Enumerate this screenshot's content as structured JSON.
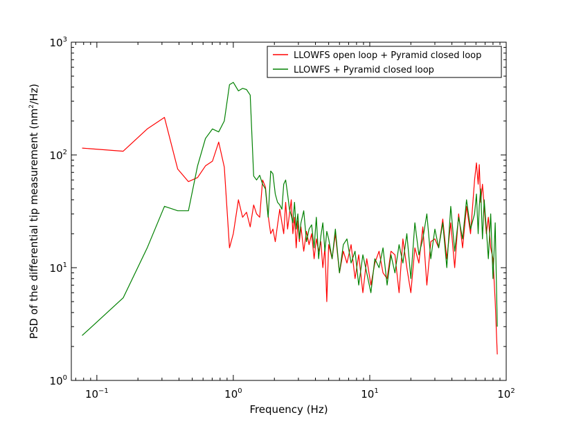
{
  "chart_data": {
    "type": "line",
    "xscale": "log",
    "yscale": "log",
    "xlim": [
      0.065,
      100
    ],
    "ylim": [
      1,
      1000
    ],
    "xlabel": "Frequency (Hz)",
    "ylabel": "PSD of the differential tip measurement (nm²/Hz)",
    "ylabel_parts": {
      "before": "PSD of the differential tip measurement (nm",
      "sup": "2",
      "after": "/Hz)"
    },
    "x_ticks": [
      {
        "value": 0.1,
        "base": "10",
        "exp": "−1"
      },
      {
        "value": 1,
        "base": "10",
        "exp": "0"
      },
      {
        "value": 10,
        "base": "10",
        "exp": "1"
      },
      {
        "value": 100,
        "base": "10",
        "exp": "2"
      }
    ],
    "y_ticks": [
      {
        "value": 1,
        "base": "10",
        "exp": "0"
      },
      {
        "value": 10,
        "base": "10",
        "exp": "1"
      },
      {
        "value": 100,
        "base": "10",
        "exp": "2"
      },
      {
        "value": 1000,
        "base": "10",
        "exp": "3"
      }
    ],
    "legend_position": "top-right",
    "series": [
      {
        "name": "LLOWFS open loop + Pyramid closed loop",
        "color": "#ff0000",
        "x": [
          0.078,
          0.156,
          0.234,
          0.313,
          0.391,
          0.469,
          0.547,
          0.625,
          0.703,
          0.781,
          0.859,
          0.938,
          1.0,
          1.09,
          1.17,
          1.25,
          1.33,
          1.41,
          1.48,
          1.56,
          1.64,
          1.72,
          1.8,
          1.88,
          1.95,
          2.03,
          2.11,
          2.19,
          2.27,
          2.34,
          2.42,
          2.5,
          2.58,
          2.66,
          2.73,
          2.81,
          2.89,
          2.97,
          3.05,
          3.13,
          3.28,
          3.44,
          3.59,
          3.75,
          3.91,
          4.06,
          4.22,
          4.38,
          4.53,
          4.69,
          4.84,
          5.0,
          5.3,
          5.6,
          6.0,
          6.4,
          6.8,
          7.3,
          7.8,
          8.3,
          8.9,
          9.5,
          10.2,
          10.9,
          11.7,
          12.5,
          13.4,
          14.3,
          15.3,
          16.4,
          17.5,
          18.7,
          20.0,
          21.4,
          22.9,
          24.5,
          26.2,
          28.0,
          30.0,
          32.0,
          34.3,
          36.7,
          39.2,
          41.9,
          44.8,
          47.9,
          51.2,
          54.8,
          58.6,
          60.5,
          62.3,
          63.5,
          65.0,
          67.0,
          69.0,
          71.5,
          74.0,
          77.0,
          80.0,
          83.0,
          86.0
        ],
        "y": [
          115,
          108,
          170,
          215,
          75,
          58,
          63,
          80,
          88,
          130,
          78,
          15,
          20,
          40,
          28,
          31,
          23,
          36,
          30,
          28,
          60,
          52,
          29,
          20,
          22,
          17,
          24,
          33,
          25,
          20,
          38,
          22,
          30,
          40,
          20,
          28,
          15,
          26,
          17,
          23,
          14,
          21,
          16,
          20,
          12,
          18,
          14,
          17,
          10,
          15,
          5,
          16,
          12,
          20,
          9,
          14,
          11,
          16,
          8,
          13,
          6,
          12,
          7,
          11,
          14,
          9,
          8,
          14,
          13,
          6,
          18,
          10,
          6,
          15,
          11,
          23,
          7,
          17,
          18,
          15,
          27,
          12,
          25,
          10,
          30,
          15,
          35,
          20,
          60,
          85,
          55,
          82,
          38,
          55,
          35,
          20,
          28,
          15,
          12,
          5,
          1.7
        ]
      },
      {
        "name": "LLOWFS + Pyramid closed loop",
        "color": "#008000",
        "x": [
          0.078,
          0.156,
          0.234,
          0.313,
          0.391,
          0.469,
          0.547,
          0.625,
          0.703,
          0.781,
          0.859,
          0.938,
          1.0,
          1.09,
          1.17,
          1.25,
          1.33,
          1.41,
          1.48,
          1.56,
          1.64,
          1.72,
          1.8,
          1.88,
          1.95,
          2.03,
          2.11,
          2.19,
          2.27,
          2.34,
          2.42,
          2.5,
          2.58,
          2.66,
          2.73,
          2.81,
          2.89,
          2.97,
          3.05,
          3.13,
          3.28,
          3.44,
          3.59,
          3.75,
          3.91,
          4.06,
          4.22,
          4.38,
          4.53,
          4.69,
          4.84,
          5.0,
          5.3,
          5.6,
          6.0,
          6.4,
          6.8,
          7.3,
          7.8,
          8.3,
          8.9,
          9.5,
          10.2,
          10.9,
          11.7,
          12.5,
          13.4,
          14.3,
          15.3,
          16.4,
          17.5,
          18.7,
          20.0,
          21.4,
          22.9,
          24.5,
          26.2,
          28.0,
          30.0,
          32.0,
          34.3,
          36.7,
          39.2,
          41.9,
          44.8,
          47.9,
          51.2,
          54.8,
          58.6,
          60.5,
          62.3,
          63.5,
          65.0,
          67.0,
          69.0,
          71.5,
          74.0,
          77.0,
          80.0,
          83.0,
          86.0
        ],
        "y": [
          2.5,
          5.4,
          15,
          35,
          32,
          32,
          80,
          140,
          170,
          160,
          200,
          420,
          440,
          370,
          390,
          380,
          340,
          65,
          60,
          66,
          55,
          50,
          28,
          72,
          68,
          45,
          38,
          36,
          33,
          55,
          60,
          45,
          33,
          29,
          25,
          38,
          22,
          30,
          18,
          25,
          32,
          17,
          22,
          24,
          15,
          28,
          12,
          19,
          25,
          14,
          21,
          18,
          12,
          22,
          9,
          16,
          18,
          11,
          14,
          7,
          13,
          9,
          6,
          12,
          10,
          15,
          7,
          13,
          9,
          16,
          11,
          20,
          8,
          25,
          13,
          18,
          30,
          12,
          22,
          15,
          25,
          10,
          35,
          14,
          28,
          18,
          40,
          22,
          30,
          45,
          20,
          35,
          50,
          18,
          40,
          22,
          12,
          30,
          8,
          25,
          3
        ]
      }
    ]
  }
}
